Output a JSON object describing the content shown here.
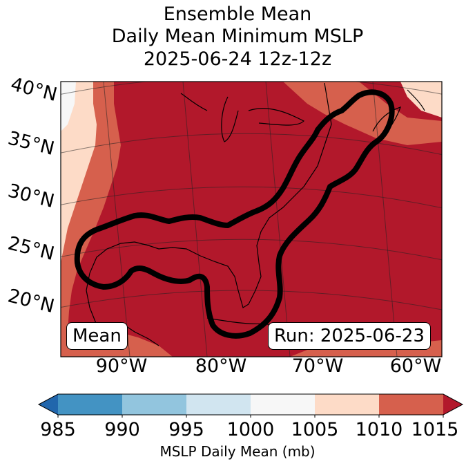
{
  "title": {
    "line1": "Ensemble Mean",
    "line2": "Daily Mean Minimum MSLP",
    "line3": "2025-06-24 12z-12z"
  },
  "latitude_labels": [
    "40°N",
    "35°N",
    "30°N",
    "25°N",
    "20°N"
  ],
  "longitude_labels": [
    "90°W",
    "80°W",
    "70°W",
    "60°W"
  ],
  "annotations": {
    "left": "Mean",
    "right": "Run: 2025-06-23"
  },
  "colorbar": {
    "title": "MSLP Daily Mean (mb)",
    "ticks": [
      "985",
      "990",
      "995",
      "1000",
      "1005",
      "1010",
      "1015"
    ],
    "colors": [
      "#2166ac",
      "#4393c3",
      "#92c5de",
      "#d1e5f0",
      "#f7f7f7",
      "#fddbc7",
      "#d6604d",
      "#b2182b"
    ]
  },
  "fill_colors": {
    "dominant": "#b2182b",
    "band_1010": "#d6604d",
    "band_1005": "#fddbc7",
    "band_1000": "#f7f7f7"
  }
}
